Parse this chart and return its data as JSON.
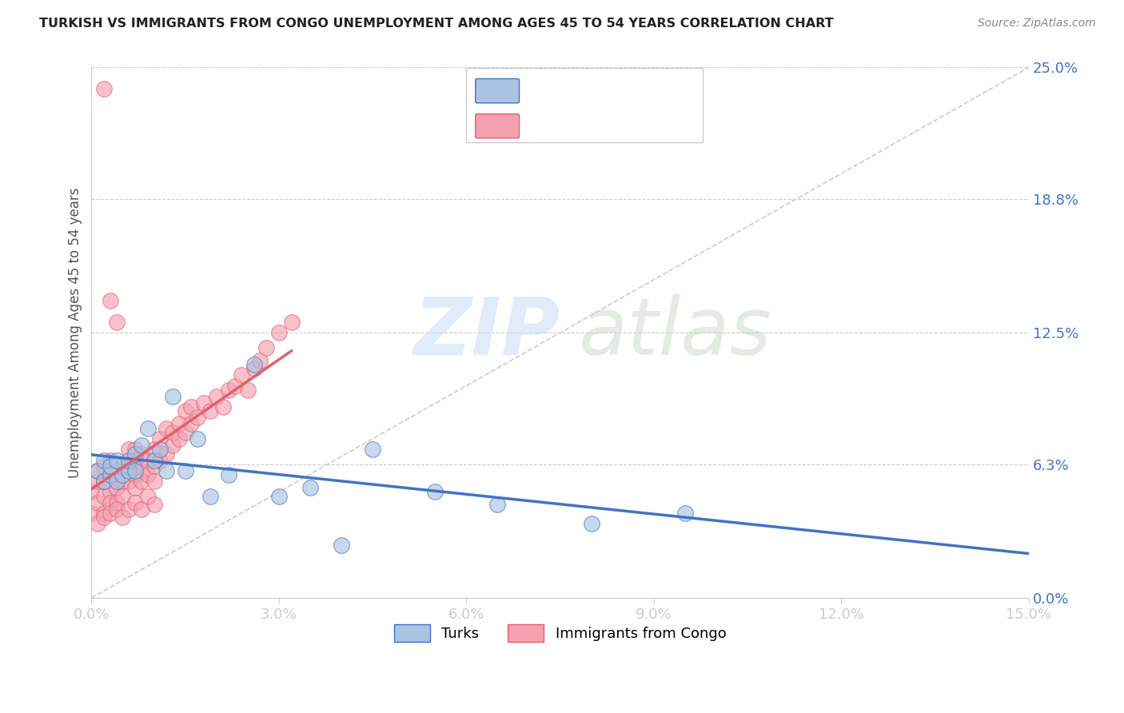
{
  "title": "TURKISH VS IMMIGRANTS FROM CONGO UNEMPLOYMENT AMONG AGES 45 TO 54 YEARS CORRELATION CHART",
  "source": "Source: ZipAtlas.com",
  "xlabel_ticks": [
    "0.0%",
    "3.0%",
    "6.0%",
    "9.0%",
    "12.0%",
    "15.0%"
  ],
  "xlabel_vals": [
    0.0,
    0.03,
    0.06,
    0.09,
    0.12,
    0.15
  ],
  "ylabel_ticks": [
    "0.0%",
    "6.3%",
    "12.5%",
    "18.8%",
    "25.0%"
  ],
  "ylabel_vals": [
    0.0,
    0.063,
    0.125,
    0.188,
    0.25
  ],
  "ylabel_label": "Unemployment Among Ages 45 to 54 years",
  "xlim": [
    0.0,
    0.15
  ],
  "ylim": [
    0.0,
    0.25
  ],
  "turks_color": "#a8c4e0",
  "congo_color": "#f4a0b0",
  "turks_line_color": "#4472c4",
  "congo_line_color": "#e06070",
  "turks_x": [
    0.001,
    0.002,
    0.002,
    0.003,
    0.003,
    0.004,
    0.004,
    0.005,
    0.006,
    0.006,
    0.007,
    0.007,
    0.008,
    0.009,
    0.01,
    0.011,
    0.012,
    0.013,
    0.015,
    0.017,
    0.019,
    0.022,
    0.026,
    0.03,
    0.035,
    0.04,
    0.045,
    0.055,
    0.065,
    0.08,
    0.095
  ],
  "turks_y": [
    0.06,
    0.055,
    0.065,
    0.058,
    0.062,
    0.055,
    0.065,
    0.058,
    0.06,
    0.065,
    0.06,
    0.068,
    0.072,
    0.08,
    0.065,
    0.07,
    0.06,
    0.095,
    0.06,
    0.075,
    0.048,
    0.058,
    0.11,
    0.048,
    0.052,
    0.025,
    0.07,
    0.05,
    0.044,
    0.035,
    0.04
  ],
  "congo_x": [
    0.0,
    0.0,
    0.001,
    0.001,
    0.001,
    0.002,
    0.002,
    0.002,
    0.002,
    0.003,
    0.003,
    0.003,
    0.003,
    0.004,
    0.004,
    0.004,
    0.005,
    0.005,
    0.005,
    0.006,
    0.006,
    0.006,
    0.007,
    0.007,
    0.007,
    0.007,
    0.008,
    0.008,
    0.008,
    0.009,
    0.009,
    0.01,
    0.01,
    0.01,
    0.011,
    0.011,
    0.012,
    0.012,
    0.013,
    0.013,
    0.014,
    0.014,
    0.015,
    0.015,
    0.016,
    0.016,
    0.017,
    0.018,
    0.019,
    0.02,
    0.021,
    0.022,
    0.023,
    0.024,
    0.025,
    0.026,
    0.027,
    0.028,
    0.03,
    0.032,
    0.001,
    0.002,
    0.003,
    0.004,
    0.005,
    0.006,
    0.007,
    0.008,
    0.009,
    0.01,
    0.002,
    0.003,
    0.004
  ],
  "congo_y": [
    0.05,
    0.04,
    0.055,
    0.045,
    0.06,
    0.048,
    0.055,
    0.062,
    0.04,
    0.05,
    0.058,
    0.065,
    0.045,
    0.052,
    0.06,
    0.045,
    0.055,
    0.062,
    0.048,
    0.055,
    0.062,
    0.07,
    0.058,
    0.065,
    0.052,
    0.07,
    0.06,
    0.068,
    0.055,
    0.065,
    0.058,
    0.062,
    0.07,
    0.055,
    0.065,
    0.075,
    0.068,
    0.08,
    0.072,
    0.078,
    0.075,
    0.082,
    0.078,
    0.088,
    0.082,
    0.09,
    0.085,
    0.092,
    0.088,
    0.095,
    0.09,
    0.098,
    0.1,
    0.105,
    0.098,
    0.108,
    0.112,
    0.118,
    0.125,
    0.13,
    0.035,
    0.038,
    0.04,
    0.042,
    0.038,
    0.042,
    0.045,
    0.042,
    0.048,
    0.044,
    0.24,
    0.14,
    0.13
  ],
  "congo_line_x": [
    0.0,
    0.032
  ],
  "congo_line_y_start": 0.042,
  "congo_line_y_end": 0.13,
  "turks_line_x": [
    0.0,
    0.15
  ],
  "turks_line_y_start": 0.063,
  "turks_line_y_end": 0.037
}
